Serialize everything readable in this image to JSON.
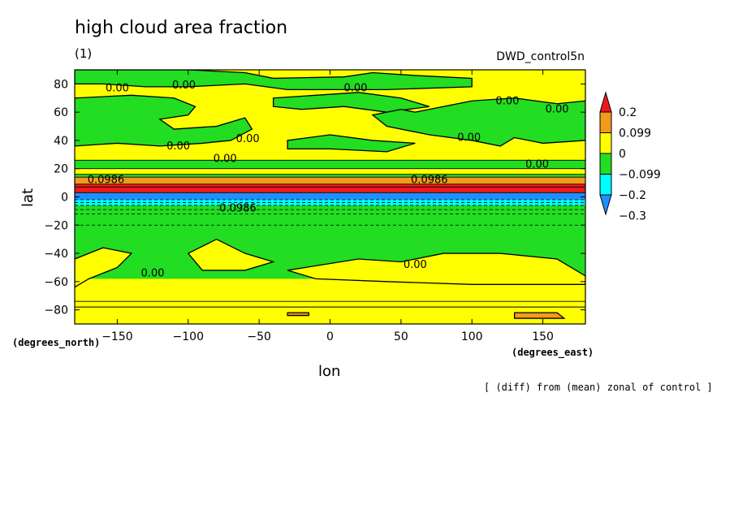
{
  "chart": {
    "title": "high cloud area fraction",
    "subtitle": "(1)",
    "run_name": "DWD_control5n",
    "footnote": "[ (diff) from (mean) zonal of control ]"
  },
  "chart_data": {
    "type": "heatmap",
    "title": "high cloud area fraction",
    "xlabel": "lon",
    "ylabel": "lat",
    "x_unit": "(degrees_east)",
    "y_unit": "(degrees_north)",
    "xlim": [
      -180,
      180
    ],
    "ylim": [
      -90,
      90
    ],
    "x_ticks": [
      -150,
      -100,
      -50,
      0,
      50,
      100,
      150
    ],
    "y_ticks": [
      -80,
      -60,
      -40,
      -20,
      0,
      20,
      40,
      60,
      80
    ],
    "colorbar": {
      "labels": [
        "0.2",
        "0.099",
        "0",
        "−0.099",
        "−0.2",
        "−0.3"
      ],
      "colors": [
        "#ee1a1a",
        "#f39a1c",
        "#ffff00",
        "#22dd22",
        "#00ffff",
        "#1e90ff"
      ],
      "over_color": "#ee1a1a",
      "under_color": "#1e90ff"
    },
    "contour_labels": [
      {
        "text": "0.00",
        "lon": -150,
        "lat": 77
      },
      {
        "text": "0.00",
        "lon": -103,
        "lat": 79
      },
      {
        "text": "0.00",
        "lon": 18,
        "lat": 77
      },
      {
        "text": "0.00",
        "lon": 125,
        "lat": 68
      },
      {
        "text": "0.00",
        "lon": 160,
        "lat": 62
      },
      {
        "text": "0.00",
        "lon": -58,
        "lat": 41
      },
      {
        "text": "0.00",
        "lon": -107,
        "lat": 36
      },
      {
        "text": "0.00",
        "lon": 98,
        "lat": 42
      },
      {
        "text": "0.00",
        "lon": 146,
        "lat": 23
      },
      {
        "text": "0.00",
        "lon": -74,
        "lat": 27
      },
      {
        "text": "0.0986",
        "lon": -158,
        "lat": 12
      },
      {
        "text": "0.0986",
        "lon": 70,
        "lat": 12
      },
      {
        "text": "0.0986",
        "lon": -65,
        "lat": -8
      },
      {
        "text": "0.00",
        "lon": -125,
        "lat": -54
      },
      {
        "text": "0.00",
        "lon": 60,
        "lat": -48
      }
    ]
  }
}
